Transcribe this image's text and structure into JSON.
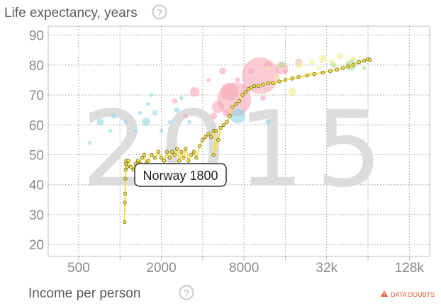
{
  "header": {
    "y_title": "Life expectancy, years",
    "x_title": "Income per person",
    "help_icon_glyph": "?",
    "data_doubts_label": "DATA DOUBTS",
    "warning_icon": "warning-triangle-icon",
    "accent_color": "#e8542e"
  },
  "watermark": {
    "year": "2015"
  },
  "tooltip": {
    "label": "Norway 1800"
  },
  "chart_data": {
    "type": "scatter",
    "title": "",
    "xlabel": "Income per person",
    "ylabel": "Life expectancy, years",
    "x_scale": "log",
    "xlim": [
      300,
      180000
    ],
    "ylim": [
      16,
      93
    ],
    "x_ticks": [
      500,
      2000,
      8000,
      32000,
      128000
    ],
    "x_tick_labels": [
      "500",
      "2000",
      "8000",
      "32k",
      "128k"
    ],
    "y_ticks": [
      20,
      30,
      40,
      50,
      60,
      70,
      80,
      90
    ],
    "y_tick_labels": [
      "20",
      "30",
      "40",
      "50",
      "60",
      "70",
      "80",
      "90"
    ],
    "grid": true,
    "trail": {
      "name": "Norway",
      "color": "#f5e04a",
      "points": [
        [
          1080,
          27.5
        ],
        [
          1085,
          34
        ],
        [
          1090,
          37
        ],
        [
          1095,
          42
        ],
        [
          1100,
          45
        ],
        [
          1105,
          47
        ],
        [
          1110,
          48
        ],
        [
          1130,
          46
        ],
        [
          1150,
          48
        ],
        [
          1200,
          46
        ],
        [
          1250,
          45
        ],
        [
          1300,
          47
        ],
        [
          1350,
          48
        ],
        [
          1400,
          47
        ],
        [
          1450,
          49
        ],
        [
          1500,
          50
        ],
        [
          1550,
          47
        ],
        [
          1600,
          48
        ],
        [
          1700,
          50
        ],
        [
          1800,
          49
        ],
        [
          1900,
          51
        ],
        [
          2000,
          49
        ],
        [
          2100,
          48
        ],
        [
          2200,
          51
        ],
        [
          2300,
          49
        ],
        [
          2400,
          51
        ],
        [
          2500,
          50
        ],
        [
          2600,
          52
        ],
        [
          2700,
          48
        ],
        [
          2800,
          51
        ],
        [
          2900,
          49
        ],
        [
          3000,
          52
        ],
        [
          3150,
          48
        ],
        [
          3300,
          50
        ],
        [
          3450,
          51
        ],
        [
          3600,
          49
        ],
        [
          3800,
          53
        ],
        [
          4000,
          55
        ],
        [
          4200,
          56
        ],
        [
          4400,
          57
        ],
        [
          4600,
          56
        ],
        [
          4800,
          58
        ],
        [
          5000,
          58
        ],
        [
          4800,
          50
        ],
        [
          5200,
          55
        ],
        [
          5400,
          59
        ],
        [
          5700,
          60
        ],
        [
          6000,
          61
        ],
        [
          6300,
          63
        ],
        [
          6600,
          66
        ],
        [
          7000,
          67
        ],
        [
          7400,
          68
        ],
        [
          7800,
          70
        ],
        [
          8200,
          71
        ],
        [
          8600,
          72
        ],
        [
          9000,
          72.5
        ],
        [
          9500,
          73
        ],
        [
          10200,
          73
        ],
        [
          11000,
          73.5
        ],
        [
          12000,
          74
        ],
        [
          13000,
          74
        ],
        [
          14500,
          74.5
        ],
        [
          16000,
          75
        ],
        [
          18000,
          75.5
        ],
        [
          20000,
          76
        ],
        [
          23000,
          76.5
        ],
        [
          26000,
          77
        ],
        [
          30000,
          77.5
        ],
        [
          34000,
          78
        ],
        [
          38000,
          78.5
        ],
        [
          42000,
          79
        ],
        [
          46000,
          79.5
        ],
        [
          50000,
          80
        ],
        [
          55000,
          81
        ],
        [
          60000,
          81.5
        ],
        [
          64000,
          82
        ],
        [
          66000,
          81.7
        ]
      ]
    },
    "series": [
      {
        "name": "",
        "color": "#f7a9b8",
        "points": [
          [
            10500,
            76.5,
            26
          ],
          [
            6800,
            68.5,
            24
          ],
          [
            6300,
            71,
            13
          ],
          [
            5200,
            66,
            9
          ],
          [
            3500,
            71,
            7
          ],
          [
            2500,
            68,
            4
          ],
          [
            6000,
            64,
            6
          ],
          [
            5600,
            78,
            5
          ],
          [
            15000,
            79,
            9
          ],
          [
            4800,
            63,
            5
          ],
          [
            7200,
            75,
            4
          ],
          [
            9000,
            78,
            5
          ],
          [
            12000,
            80,
            6
          ],
          [
            8000,
            73,
            4
          ],
          [
            4400,
            75,
            3
          ],
          [
            3000,
            63,
            4
          ],
          [
            20000,
            81,
            5
          ],
          [
            16000,
            78,
            4
          ],
          [
            11000,
            69,
            4
          ],
          [
            7600,
            64,
            4
          ]
        ]
      },
      {
        "name": "",
        "color": "#f3ec8c",
        "points": [
          [
            40000,
            83,
            5
          ],
          [
            30000,
            82,
            6
          ],
          [
            20000,
            80,
            5
          ],
          [
            25000,
            81,
            4
          ],
          [
            35000,
            81,
            4
          ],
          [
            18000,
            71,
            6
          ],
          [
            50000,
            82,
            4
          ],
          [
            14000,
            76,
            4
          ],
          [
            24000,
            77,
            4
          ],
          [
            12000,
            79,
            3
          ],
          [
            28000,
            79,
            3
          ],
          [
            45000,
            80,
            3
          ]
        ]
      },
      {
        "name": "",
        "color": "#aee08c",
        "points": [
          [
            48000,
            80,
            8
          ],
          [
            15000,
            80,
            5
          ],
          [
            55000,
            81,
            4
          ],
          [
            36000,
            80,
            4
          ],
          [
            60000,
            79,
            3
          ]
        ]
      },
      {
        "name": "",
        "color": "#8fd7e8",
        "points": [
          [
            7200,
            63,
            11
          ],
          [
            1550,
            61,
            6
          ],
          [
            720,
            61,
            5
          ],
          [
            900,
            63,
            4
          ],
          [
            1800,
            64,
            4
          ],
          [
            2600,
            65,
            4
          ],
          [
            1300,
            58,
            3
          ],
          [
            2000,
            58,
            3
          ],
          [
            1600,
            67,
            3
          ],
          [
            12000,
            61,
            4
          ],
          [
            3200,
            61,
            3
          ],
          [
            1100,
            61,
            3
          ],
          [
            1400,
            64,
            3
          ],
          [
            850,
            58,
            3
          ],
          [
            2300,
            61,
            3
          ],
          [
            600,
            54,
            3
          ],
          [
            1700,
            70,
            3
          ],
          [
            2800,
            69,
            3
          ]
        ]
      }
    ]
  }
}
